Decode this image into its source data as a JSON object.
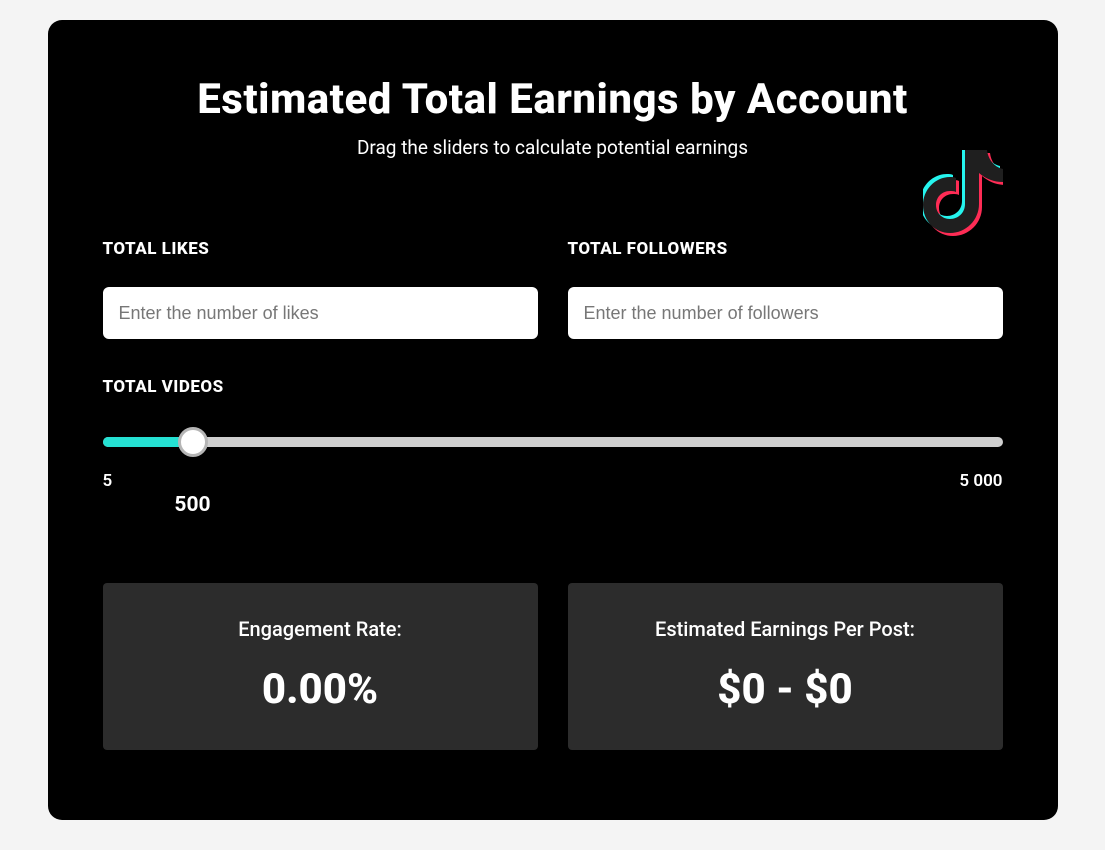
{
  "colors": {
    "card_bg": "#000000",
    "page_bg": "#f4f4f4",
    "text": "#ffffff",
    "input_bg": "#ffffff",
    "input_placeholder": "#777777",
    "slider_track": "#cfcfcf",
    "slider_fill": "#25e1d3",
    "slider_thumb_border": "#b5b5b5",
    "result_card_bg": "#2c2c2c",
    "logo_teal": "#25f4ee",
    "logo_pink": "#fe2c55",
    "logo_dark": "#1f1f1f"
  },
  "header": {
    "title": "Estimated Total Earnings by Account",
    "subtitle": "Drag the sliders to calculate potential earnings"
  },
  "inputs": {
    "likes": {
      "label": "TOTAL LIKES",
      "placeholder": "Enter the number of likes",
      "value": ""
    },
    "followers": {
      "label": "TOTAL FOLLOWERS",
      "placeholder": "Enter the number of followers",
      "value": ""
    }
  },
  "videos_slider": {
    "label": "TOTAL VIDEOS",
    "min": 5,
    "max": 5000,
    "value": 500,
    "min_display": "5",
    "max_display": "5 000",
    "value_display": "500",
    "fill_percent": 10
  },
  "results": {
    "engagement": {
      "label": "Engagement Rate:",
      "value": "0.00%"
    },
    "earnings": {
      "label": "Estimated Earnings Per Post:",
      "value": "$0 - $0"
    }
  }
}
